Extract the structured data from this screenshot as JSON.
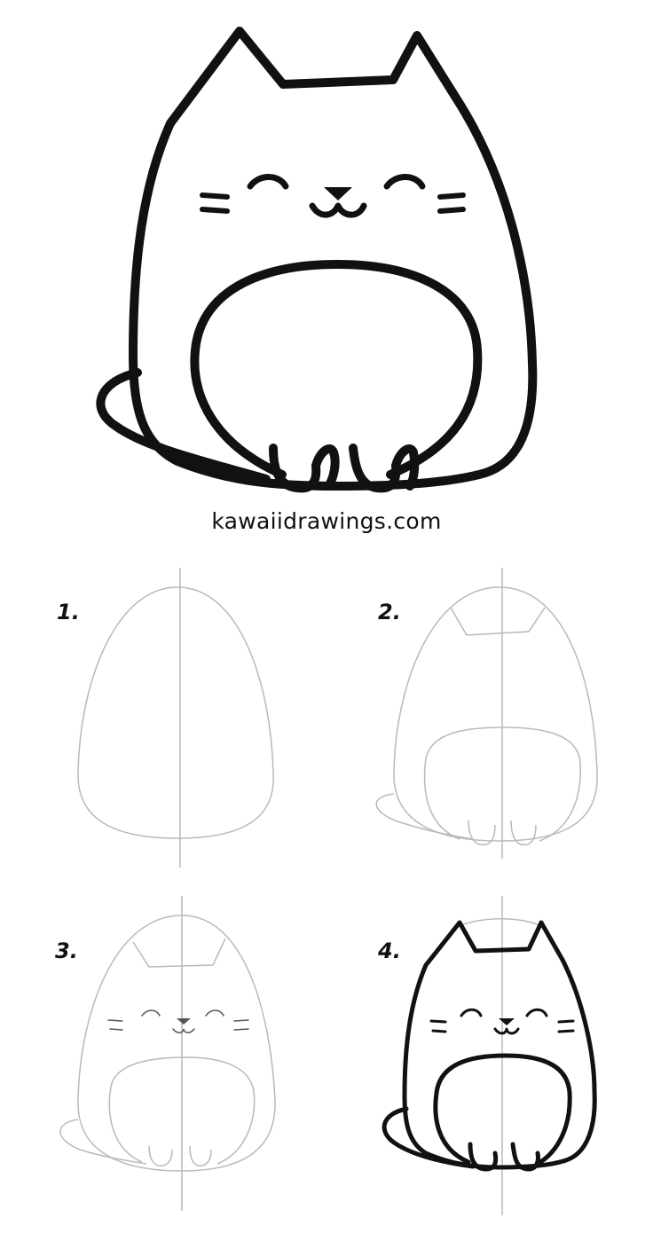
{
  "caption": "kawaiidrawings.com",
  "ink_color": "#111111",
  "pencil_color": "#b9b9b9",
  "steps": [
    {
      "number": "1."
    },
    {
      "number": "2."
    },
    {
      "number": "3."
    },
    {
      "number": "4."
    }
  ]
}
